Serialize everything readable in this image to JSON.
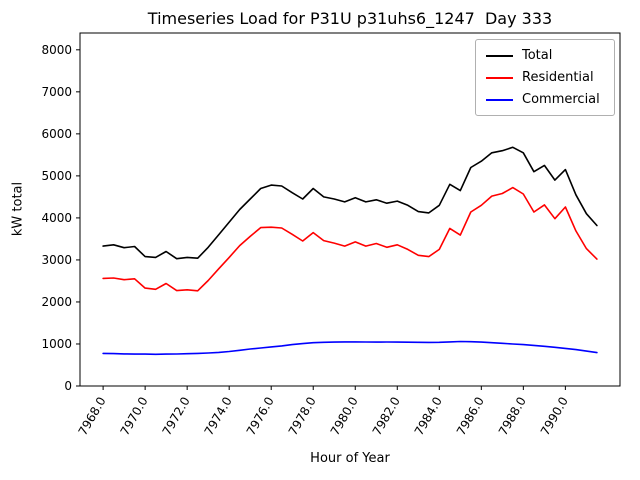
{
  "title": "Timeseries Load for P31U p31uhs6_1247  Day 333",
  "chart_data": {
    "type": "line",
    "title": "Timeseries Load for P31U p31uhs6_1247  Day 333",
    "xlabel": "Hour of Year",
    "ylabel": "kW total",
    "xlim": [
      7966.9,
      7992.6
    ],
    "ylim": [
      0,
      8400
    ],
    "grid": false,
    "legend_position": "upper right",
    "x_ticks": [
      7968,
      7970,
      7972,
      7974,
      7976,
      7978,
      7980,
      7982,
      7984,
      7986,
      7988,
      7990
    ],
    "x_tick_labels": [
      "7968.0",
      "7970.0",
      "7972.0",
      "7974.0",
      "7976.0",
      "7978.0",
      "7980.0",
      "7982.0",
      "7984.0",
      "7986.0",
      "7988.0",
      "7990.0"
    ],
    "y_ticks": [
      0,
      1000,
      2000,
      3000,
      4000,
      5000,
      6000,
      7000,
      8000
    ],
    "y_tick_labels": [
      "0",
      "1000",
      "2000",
      "3000",
      "4000",
      "5000",
      "6000",
      "7000",
      "8000"
    ],
    "x": [
      7968.0,
      7968.5,
      7969.0,
      7969.5,
      7970.0,
      7970.5,
      7971.0,
      7971.5,
      7972.0,
      7972.5,
      7973.0,
      7973.5,
      7974.0,
      7974.5,
      7975.0,
      7975.5,
      7976.0,
      7976.5,
      7977.0,
      7977.5,
      7978.0,
      7978.5,
      7979.0,
      7979.5,
      7980.0,
      7980.5,
      7981.0,
      7981.5,
      7982.0,
      7982.5,
      7983.0,
      7983.5,
      7984.0,
      7984.5,
      7985.0,
      7985.5,
      7986.0,
      7986.5,
      7987.0,
      7987.5,
      7988.0,
      7988.5,
      7989.0,
      7989.5,
      7990.0,
      7990.5,
      7991.0,
      7991.5
    ],
    "series": [
      {
        "name": "Total",
        "color": "#000000",
        "values": [
          3330,
          3360,
          3290,
          3320,
          3080,
          3060,
          3200,
          3030,
          3060,
          3040,
          3300,
          3600,
          3900,
          4200,
          4450,
          4700,
          4780,
          4760,
          4600,
          4450,
          4700,
          4500,
          4450,
          4380,
          4480,
          4380,
          4430,
          4350,
          4400,
          4300,
          4150,
          4120,
          4300,
          4800,
          4650,
          5200,
          5350,
          5550,
          5600,
          5680,
          5550,
          5100,
          5250,
          4900,
          5150,
          4550,
          4100,
          3820
        ]
      },
      {
        "name": "Residential",
        "color": "#ff0000",
        "values": [
          2560,
          2570,
          2530,
          2550,
          2330,
          2300,
          2440,
          2270,
          2290,
          2265,
          2510,
          2790,
          3060,
          3340,
          3560,
          3770,
          3780,
          3760,
          3610,
          3450,
          3650,
          3460,
          3400,
          3330,
          3430,
          3330,
          3390,
          3300,
          3360,
          3250,
          3110,
          3080,
          3250,
          3750,
          3590,
          4140,
          4300,
          4520,
          4580,
          4720,
          4570,
          4140,
          4310,
          3980,
          4260,
          3690,
          3270,
          3020
        ]
      },
      {
        "name": "Commercial",
        "color": "#0000ff",
        "values": [
          775,
          770,
          765,
          760,
          758,
          755,
          758,
          762,
          768,
          775,
          785,
          800,
          820,
          850,
          880,
          905,
          930,
          955,
          985,
          1010,
          1030,
          1040,
          1045,
          1050,
          1050,
          1048,
          1045,
          1048,
          1045,
          1042,
          1040,
          1038,
          1040,
          1050,
          1060,
          1055,
          1045,
          1030,
          1015,
          1000,
          985,
          965,
          945,
          920,
          895,
          865,
          830,
          795
        ]
      }
    ]
  }
}
